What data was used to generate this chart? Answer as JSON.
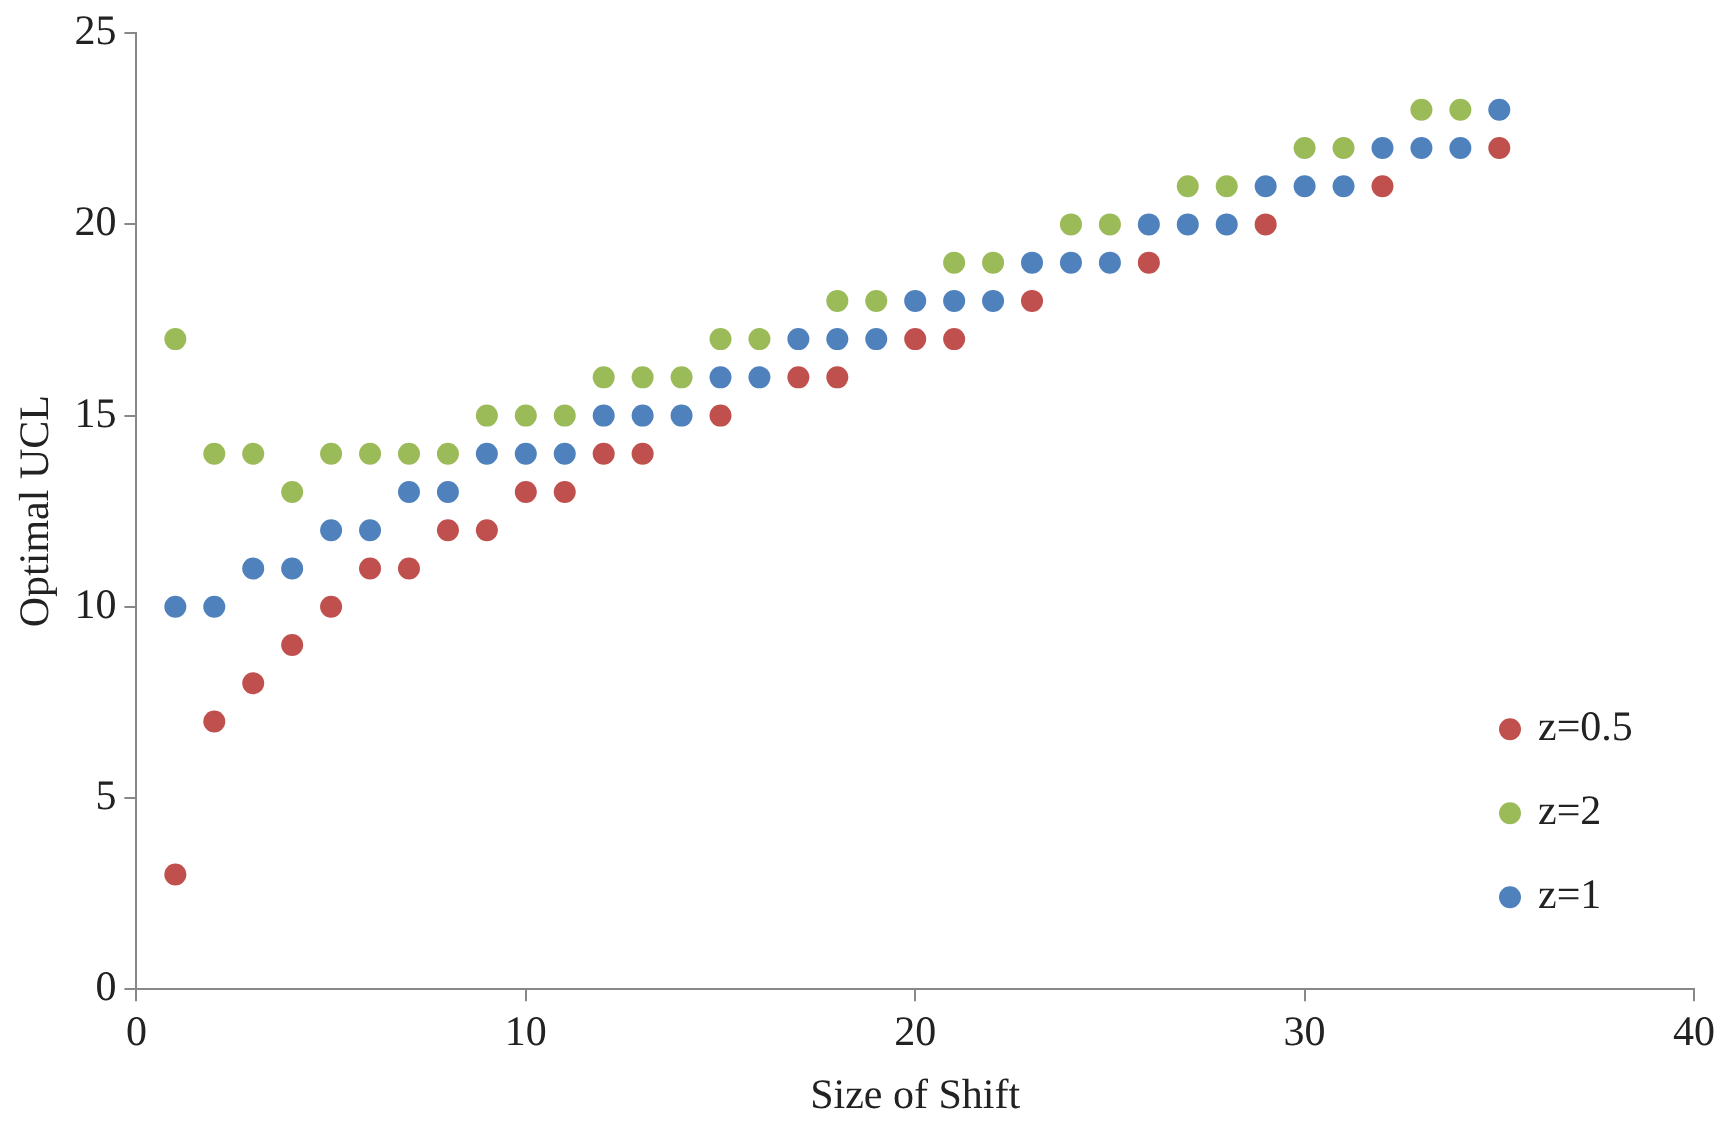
{
  "chart_data": {
    "type": "scatter",
    "xlabel": "Size of Shift",
    "ylabel": "Optimal UCL",
    "x": [
      1,
      2,
      3,
      4,
      5,
      6,
      7,
      8,
      9,
      10,
      11,
      12,
      13,
      14,
      15,
      16,
      17,
      18,
      19,
      20,
      21,
      22,
      23,
      24,
      25,
      26,
      27,
      28,
      29,
      30,
      31,
      32,
      33,
      34,
      35
    ],
    "series": [
      {
        "name": "z=0.5",
        "color": "#c0504d",
        "values": [
          3,
          7,
          8,
          9,
          10,
          11,
          11,
          12,
          12,
          13,
          13,
          14,
          14,
          null,
          15,
          null,
          16,
          16,
          null,
          17,
          17,
          null,
          18,
          null,
          null,
          19,
          null,
          null,
          20,
          null,
          null,
          21,
          null,
          null,
          22
        ]
      },
      {
        "name": "z=2",
        "color": "#9bbb59",
        "values": [
          17,
          14,
          14,
          13,
          14,
          14,
          14,
          14,
          15,
          15,
          15,
          16,
          16,
          16,
          17,
          17,
          null,
          18,
          18,
          null,
          19,
          19,
          null,
          20,
          20,
          null,
          21,
          21,
          null,
          22,
          22,
          null,
          23,
          23,
          null
        ]
      },
      {
        "name": "z=1",
        "color": "#4f81bd",
        "values": [
          10,
          10,
          11,
          11,
          12,
          12,
          13,
          13,
          14,
          14,
          14,
          15,
          15,
          15,
          16,
          16,
          17,
          17,
          17,
          18,
          18,
          18,
          19,
          19,
          19,
          20,
          20,
          20,
          21,
          21,
          21,
          22,
          22,
          22,
          23
        ]
      }
    ],
    "xlim": [
      0,
      40
    ],
    "xticks": [
      0,
      10,
      20,
      30,
      40
    ],
    "ylim": [
      0,
      25
    ],
    "yticks": [
      0,
      5,
      10,
      15,
      20,
      25
    ],
    "grid": false,
    "legend": "bottom right",
    "marker": "circle"
  }
}
